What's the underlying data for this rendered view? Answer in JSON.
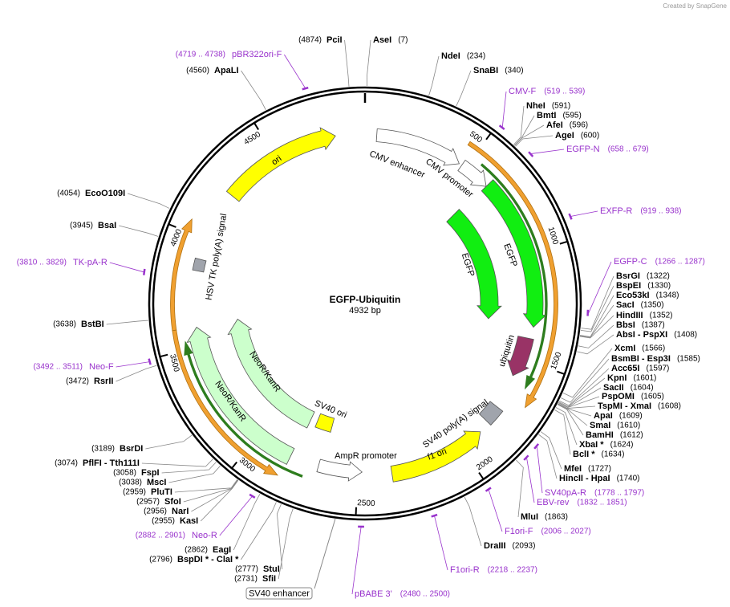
{
  "credit": "Created by SnapGene",
  "map": {
    "title": "EGFP-Ubiquitin",
    "length": "4932 bp",
    "ticks": [
      500,
      1000,
      1500,
      2000,
      2500,
      3000,
      3500,
      4000,
      4500
    ],
    "enzymes": [
      {
        "name": "PciI",
        "site": "(4874)"
      },
      {
        "name": "AseI",
        "site": "(7)"
      },
      {
        "name": "NdeI",
        "site": "(234)"
      },
      {
        "name": "SnaBI",
        "site": "(340)"
      },
      {
        "name": "NheI",
        "site": "(591)"
      },
      {
        "name": "BmtI",
        "site": "(595)"
      },
      {
        "name": "AfeI",
        "site": "(596)"
      },
      {
        "name": "AgeI",
        "site": "(600)"
      },
      {
        "name": "BsrGI",
        "site": "(1322)"
      },
      {
        "name": "BspEI",
        "site": "(1330)"
      },
      {
        "name": "Eco53kI",
        "site": "(1348)"
      },
      {
        "name": "SacI",
        "site": "(1350)"
      },
      {
        "name": "HindIII",
        "site": "(1352)"
      },
      {
        "name": "BbsI",
        "site": "(1387)"
      },
      {
        "name": "AbsI  - PspXI",
        "site": "(1408)"
      },
      {
        "name": "XcmI",
        "site": "(1566)"
      },
      {
        "name": "BsmBI  - Esp3I",
        "site": "(1585)"
      },
      {
        "name": "Acc65I",
        "site": "(1597)"
      },
      {
        "name": "KpnI",
        "site": "(1601)"
      },
      {
        "name": "SacII",
        "site": "(1604)"
      },
      {
        "name": "PspOMI",
        "site": "(1605)"
      },
      {
        "name": "TspMI  - XmaI",
        "site": "(1608)"
      },
      {
        "name": "ApaI",
        "site": "(1609)"
      },
      {
        "name": "SmaI",
        "site": "(1610)"
      },
      {
        "name": "BamHI",
        "site": "(1612)"
      },
      {
        "name": "XbaI *",
        "site": "(1624)"
      },
      {
        "name": "BclI *",
        "site": "(1634)"
      },
      {
        "name": "MfeI",
        "site": "(1727)"
      },
      {
        "name": "HincII  - HpaI",
        "site": "(1740)"
      },
      {
        "name": "MluI",
        "site": "(1863)"
      },
      {
        "name": "DraIII",
        "site": "(2093)"
      },
      {
        "name": "SfiI",
        "site": "(2731)"
      },
      {
        "name": "StuI",
        "site": "(2777)"
      },
      {
        "name": "BspDI *  - ClaI *",
        "site": "(2796)"
      },
      {
        "name": "EagI",
        "site": "(2862)"
      },
      {
        "name": "KasI",
        "site": "(2955)"
      },
      {
        "name": "NarI",
        "site": "(2956)"
      },
      {
        "name": "SfoI",
        "site": "(2957)"
      },
      {
        "name": "PluTI",
        "site": "(2959)"
      },
      {
        "name": "MscI",
        "site": "(3038)"
      },
      {
        "name": "FspI",
        "site": "(3058)"
      },
      {
        "name": "PflFI  - Tth111I",
        "site": "(3074)"
      },
      {
        "name": "BsrDI",
        "site": "(3189)"
      },
      {
        "name": "RsrII",
        "site": "(3472)"
      },
      {
        "name": "BstBI",
        "site": "(3638)"
      },
      {
        "name": "BsaI",
        "site": "(3945)"
      },
      {
        "name": "EcoO109I",
        "site": "(4054)"
      },
      {
        "name": "ApaLI",
        "site": "(4560)"
      }
    ],
    "primers": [
      {
        "name": "pBR322ori-F",
        "range": "(4719 .. 4738)"
      },
      {
        "name": "CMV-F",
        "range": "(519 .. 539)"
      },
      {
        "name": "EGFP-N",
        "range": "(658 .. 679)"
      },
      {
        "name": "EXFP-R",
        "range": "(919 .. 938)"
      },
      {
        "name": "EGFP-C",
        "range": "(1266 .. 1287)"
      },
      {
        "name": "SV40pA-R",
        "range": "(1778 .. 1797)"
      },
      {
        "name": "EBV-rev",
        "range": "(1832 .. 1851)"
      },
      {
        "name": "F1ori-F",
        "range": "(2006 .. 2027)"
      },
      {
        "name": "F1ori-R",
        "range": "(2218 .. 2237)"
      },
      {
        "name": "pBABE 3'",
        "range": "(2480 .. 2500)"
      },
      {
        "name": "Neo-R",
        "range": "(2882 .. 2901)"
      },
      {
        "name": "Neo-F",
        "range": "(3492 .. 3511)"
      },
      {
        "name": "TK-pA-R",
        "range": "(3810 .. 3829)"
      }
    ],
    "features": [
      "CMV enhancer",
      "CMV promoter",
      "EGFP",
      "EGFP",
      "ubiquitin",
      "SV40 poly(A) signal",
      "f1 ori",
      "AmpR promoter",
      "SV40 ori",
      "NeoR/KanR",
      "NeoR/KanR",
      "HSV TK poly(A) signal",
      "ori"
    ],
    "outside_feature": "SV40 enhancer"
  }
}
